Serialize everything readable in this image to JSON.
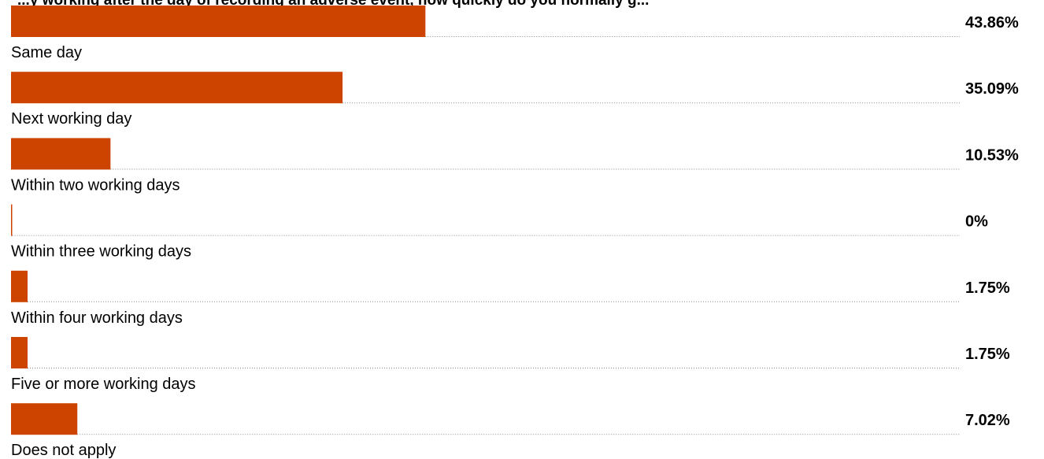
{
  "chart_data": {
    "type": "bar",
    "orientation": "horizontal",
    "title": "...y working after the day of recording an adverse event, how quickly do you normally g...",
    "categories": [
      "Same day",
      "Next working day",
      "Within two working days",
      "Within three working days",
      "Within four working days",
      "Five or more working days",
      "Does not apply"
    ],
    "values": [
      43.86,
      35.09,
      10.53,
      0,
      1.75,
      1.75,
      7.02
    ],
    "value_labels": [
      "43.86%",
      "35.09%",
      "10.53%",
      "0%",
      "1.75%",
      "1.75%",
      "7.02%"
    ],
    "xlim": [
      0,
      100
    ],
    "bar_color": "#cc4400",
    "guide_color": "#888888",
    "grid": false,
    "legend": "none"
  }
}
